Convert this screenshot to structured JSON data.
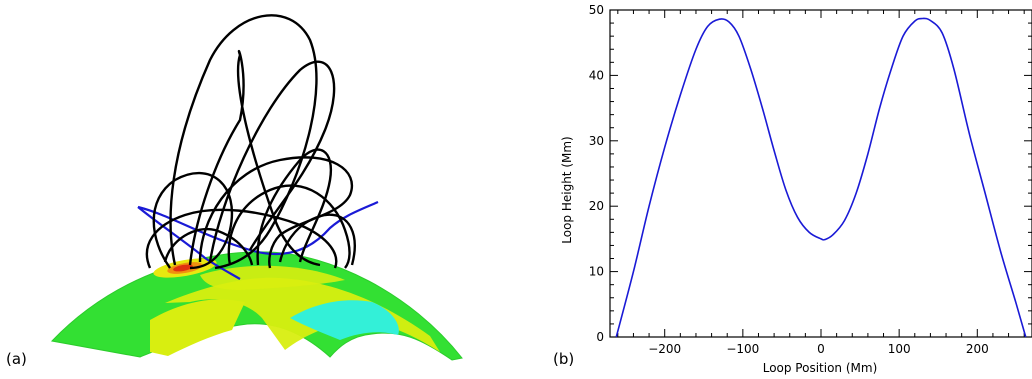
{
  "panels": {
    "a_label": "(a)",
    "b_label": "(b)"
  },
  "colors": {
    "loop": "#000000",
    "fieldline": "#1a1ad6",
    "surface_green": "#33e033",
    "surface_yellow": "#d8ee10",
    "surface_cyan": "#33f0d8",
    "hotspot_red": "#e03010",
    "curve": "#1a1ad6"
  },
  "chart_data": {
    "type": "line",
    "title": "",
    "xlabel": "Loop Position (Mm)",
    "ylabel": "Loop Height (Mm)",
    "xlim": [
      -270,
      270
    ],
    "ylim": [
      0,
      50
    ],
    "xticks": [
      -200,
      -100,
      0,
      100,
      200
    ],
    "xtick_labels": [
      "−200",
      "−100",
      "0",
      "100",
      "200"
    ],
    "yticks": [
      0,
      10,
      20,
      30,
      40,
      50
    ],
    "ytick_labels": [
      "0",
      "10",
      "20",
      "30",
      "40",
      "50"
    ],
    "grid": false,
    "series": [
      {
        "x": [
          -262,
          -240,
          -220,
          -200,
          -180,
          -160,
          -145,
          -130,
          -118,
          -105,
          -90,
          -75,
          -60,
          -45,
          -30,
          -15,
          0,
          5,
          15,
          30,
          45,
          60,
          75,
          90,
          105,
          120,
          130,
          140,
          155,
          170,
          190,
          210,
          230,
          250,
          262
        ],
        "y": [
          0,
          10,
          20,
          29,
          37,
          44,
          47.5,
          48.6,
          48.2,
          46,
          41,
          35,
          28.5,
          22.5,
          18.3,
          16,
          15,
          14.9,
          15.6,
          17.8,
          22,
          28,
          35,
          41,
          46,
          48.3,
          48.7,
          48.4,
          46.5,
          41,
          31,
          22,
          13,
          5,
          0
        ]
      }
    ]
  }
}
